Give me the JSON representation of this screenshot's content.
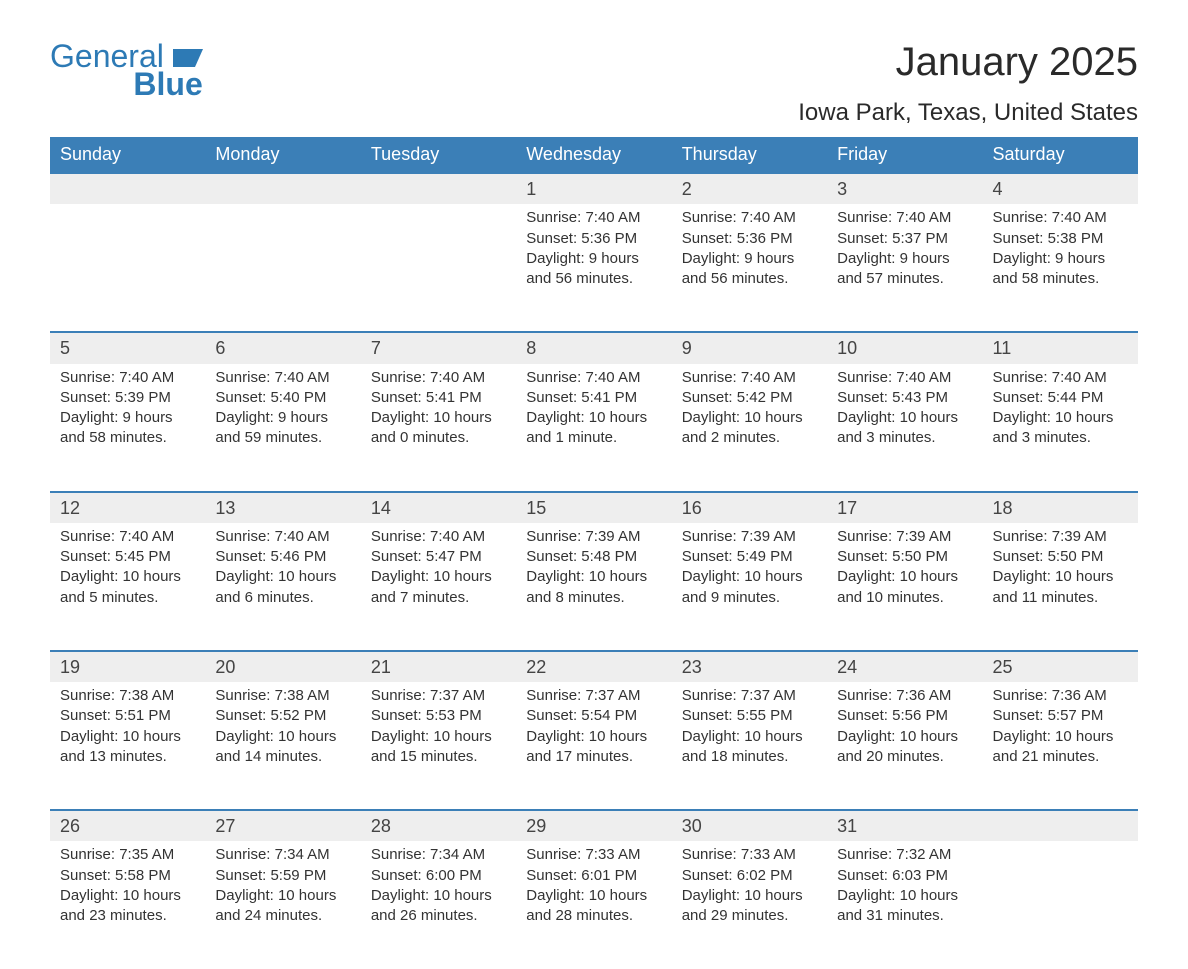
{
  "logo": {
    "word1": "General",
    "word2": "Blue",
    "icon_color": "#2d7ab5"
  },
  "title": "January 2025",
  "location": "Iowa Park, Texas, United States",
  "styling": {
    "header_bg": "#3b7fb7",
    "header_text": "#ffffff",
    "daynum_bg": "#eeeeee",
    "daynum_border": "#3b7fb7",
    "body_bg": "#ffffff",
    "text_color": "#333333",
    "title_fontsize": 40,
    "location_fontsize": 24,
    "header_fontsize": 18,
    "cell_fontsize": 15
  },
  "weekdays": [
    "Sunday",
    "Monday",
    "Tuesday",
    "Wednesday",
    "Thursday",
    "Friday",
    "Saturday"
  ],
  "weeks": [
    [
      null,
      null,
      null,
      {
        "n": "1",
        "sr": "Sunrise: 7:40 AM",
        "ss": "Sunset: 5:36 PM",
        "d1": "Daylight: 9 hours",
        "d2": "and 56 minutes."
      },
      {
        "n": "2",
        "sr": "Sunrise: 7:40 AM",
        "ss": "Sunset: 5:36 PM",
        "d1": "Daylight: 9 hours",
        "d2": "and 56 minutes."
      },
      {
        "n": "3",
        "sr": "Sunrise: 7:40 AM",
        "ss": "Sunset: 5:37 PM",
        "d1": "Daylight: 9 hours",
        "d2": "and 57 minutes."
      },
      {
        "n": "4",
        "sr": "Sunrise: 7:40 AM",
        "ss": "Sunset: 5:38 PM",
        "d1": "Daylight: 9 hours",
        "d2": "and 58 minutes."
      }
    ],
    [
      {
        "n": "5",
        "sr": "Sunrise: 7:40 AM",
        "ss": "Sunset: 5:39 PM",
        "d1": "Daylight: 9 hours",
        "d2": "and 58 minutes."
      },
      {
        "n": "6",
        "sr": "Sunrise: 7:40 AM",
        "ss": "Sunset: 5:40 PM",
        "d1": "Daylight: 9 hours",
        "d2": "and 59 minutes."
      },
      {
        "n": "7",
        "sr": "Sunrise: 7:40 AM",
        "ss": "Sunset: 5:41 PM",
        "d1": "Daylight: 10 hours",
        "d2": "and 0 minutes."
      },
      {
        "n": "8",
        "sr": "Sunrise: 7:40 AM",
        "ss": "Sunset: 5:41 PM",
        "d1": "Daylight: 10 hours",
        "d2": "and 1 minute."
      },
      {
        "n": "9",
        "sr": "Sunrise: 7:40 AM",
        "ss": "Sunset: 5:42 PM",
        "d1": "Daylight: 10 hours",
        "d2": "and 2 minutes."
      },
      {
        "n": "10",
        "sr": "Sunrise: 7:40 AM",
        "ss": "Sunset: 5:43 PM",
        "d1": "Daylight: 10 hours",
        "d2": "and 3 minutes."
      },
      {
        "n": "11",
        "sr": "Sunrise: 7:40 AM",
        "ss": "Sunset: 5:44 PM",
        "d1": "Daylight: 10 hours",
        "d2": "and 3 minutes."
      }
    ],
    [
      {
        "n": "12",
        "sr": "Sunrise: 7:40 AM",
        "ss": "Sunset: 5:45 PM",
        "d1": "Daylight: 10 hours",
        "d2": "and 5 minutes."
      },
      {
        "n": "13",
        "sr": "Sunrise: 7:40 AM",
        "ss": "Sunset: 5:46 PM",
        "d1": "Daylight: 10 hours",
        "d2": "and 6 minutes."
      },
      {
        "n": "14",
        "sr": "Sunrise: 7:40 AM",
        "ss": "Sunset: 5:47 PM",
        "d1": "Daylight: 10 hours",
        "d2": "and 7 minutes."
      },
      {
        "n": "15",
        "sr": "Sunrise: 7:39 AM",
        "ss": "Sunset: 5:48 PM",
        "d1": "Daylight: 10 hours",
        "d2": "and 8 minutes."
      },
      {
        "n": "16",
        "sr": "Sunrise: 7:39 AM",
        "ss": "Sunset: 5:49 PM",
        "d1": "Daylight: 10 hours",
        "d2": "and 9 minutes."
      },
      {
        "n": "17",
        "sr": "Sunrise: 7:39 AM",
        "ss": "Sunset: 5:50 PM",
        "d1": "Daylight: 10 hours",
        "d2": "and 10 minutes."
      },
      {
        "n": "18",
        "sr": "Sunrise: 7:39 AM",
        "ss": "Sunset: 5:50 PM",
        "d1": "Daylight: 10 hours",
        "d2": "and 11 minutes."
      }
    ],
    [
      {
        "n": "19",
        "sr": "Sunrise: 7:38 AM",
        "ss": "Sunset: 5:51 PM",
        "d1": "Daylight: 10 hours",
        "d2": "and 13 minutes."
      },
      {
        "n": "20",
        "sr": "Sunrise: 7:38 AM",
        "ss": "Sunset: 5:52 PM",
        "d1": "Daylight: 10 hours",
        "d2": "and 14 minutes."
      },
      {
        "n": "21",
        "sr": "Sunrise: 7:37 AM",
        "ss": "Sunset: 5:53 PM",
        "d1": "Daylight: 10 hours",
        "d2": "and 15 minutes."
      },
      {
        "n": "22",
        "sr": "Sunrise: 7:37 AM",
        "ss": "Sunset: 5:54 PM",
        "d1": "Daylight: 10 hours",
        "d2": "and 17 minutes."
      },
      {
        "n": "23",
        "sr": "Sunrise: 7:37 AM",
        "ss": "Sunset: 5:55 PM",
        "d1": "Daylight: 10 hours",
        "d2": "and 18 minutes."
      },
      {
        "n": "24",
        "sr": "Sunrise: 7:36 AM",
        "ss": "Sunset: 5:56 PM",
        "d1": "Daylight: 10 hours",
        "d2": "and 20 minutes."
      },
      {
        "n": "25",
        "sr": "Sunrise: 7:36 AM",
        "ss": "Sunset: 5:57 PM",
        "d1": "Daylight: 10 hours",
        "d2": "and 21 minutes."
      }
    ],
    [
      {
        "n": "26",
        "sr": "Sunrise: 7:35 AM",
        "ss": "Sunset: 5:58 PM",
        "d1": "Daylight: 10 hours",
        "d2": "and 23 minutes."
      },
      {
        "n": "27",
        "sr": "Sunrise: 7:34 AM",
        "ss": "Sunset: 5:59 PM",
        "d1": "Daylight: 10 hours",
        "d2": "and 24 minutes."
      },
      {
        "n": "28",
        "sr": "Sunrise: 7:34 AM",
        "ss": "Sunset: 6:00 PM",
        "d1": "Daylight: 10 hours",
        "d2": "and 26 minutes."
      },
      {
        "n": "29",
        "sr": "Sunrise: 7:33 AM",
        "ss": "Sunset: 6:01 PM",
        "d1": "Daylight: 10 hours",
        "d2": "and 28 minutes."
      },
      {
        "n": "30",
        "sr": "Sunrise: 7:33 AM",
        "ss": "Sunset: 6:02 PM",
        "d1": "Daylight: 10 hours",
        "d2": "and 29 minutes."
      },
      {
        "n": "31",
        "sr": "Sunrise: 7:32 AM",
        "ss": "Sunset: 6:03 PM",
        "d1": "Daylight: 10 hours",
        "d2": "and 31 minutes."
      },
      null
    ]
  ]
}
